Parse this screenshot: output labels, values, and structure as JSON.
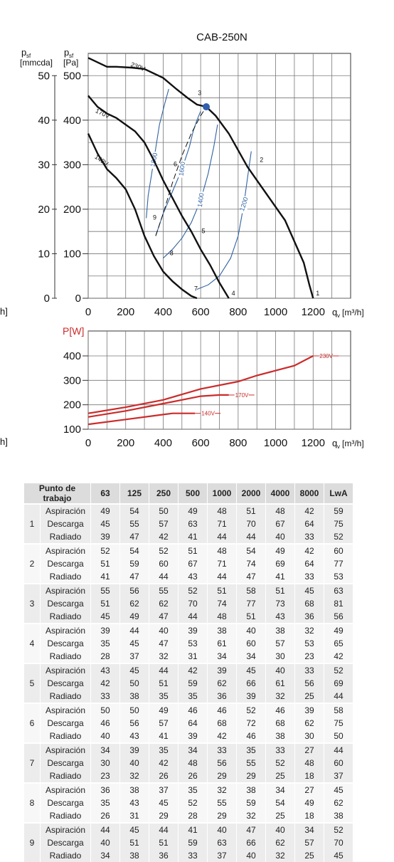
{
  "chart_data": [
    {
      "type": "line",
      "title": "CAB-250N",
      "y2_label_symbol": "p",
      "y2_label_sub": "sf",
      "y2_unit": "[mmcda]",
      "ylabel_symbol": "p",
      "ylabel_sub": "sf",
      "ylabel_unit": "[Pa]",
      "xlabel_symbol": "q",
      "xlabel_sub": "v",
      "xlabel_unit": "[m³/h]",
      "xlim": [
        0,
        1400
      ],
      "ylim": [
        0,
        550
      ],
      "x_ticks": [
        "0",
        "200",
        "400",
        "600",
        "800",
        "1000",
        "1200"
      ],
      "y_ticks": [
        "0",
        "100",
        "200",
        "300",
        "400",
        "500"
      ],
      "y2_ticks": [
        "0",
        "10",
        "20",
        "30",
        "40",
        "50"
      ],
      "grid": true,
      "series": [
        {
          "name": "230V",
          "color": "#111111",
          "x": [
            0,
            100,
            150,
            230,
            300,
            400,
            470,
            530,
            580,
            630,
            680,
            750,
            850,
            950,
            1050,
            1150,
            1180,
            1200
          ],
          "y": [
            540,
            520,
            520,
            518,
            515,
            495,
            470,
            450,
            435,
            430,
            410,
            370,
            295,
            235,
            175,
            80,
            30,
            0
          ]
        },
        {
          "name": "170V",
          "color": "#111111",
          "x": [
            0,
            50,
            100,
            150,
            200,
            250,
            300,
            350,
            400,
            450,
            500,
            550,
            600,
            650,
            700,
            750
          ],
          "y": [
            455,
            430,
            415,
            405,
            390,
            375,
            350,
            310,
            265,
            225,
            185,
            150,
            110,
            75,
            35,
            0
          ]
        },
        {
          "name": "140V",
          "color": "#111111",
          "x": [
            0,
            50,
            100,
            150,
            200,
            250,
            300,
            350,
            400,
            450,
            500,
            550,
            580
          ],
          "y": [
            370,
            325,
            290,
            270,
            245,
            200,
            140,
            95,
            60,
            38,
            20,
            5,
            0
          ]
        }
      ],
      "iso_rpm_curves": [
        {
          "label": "1800",
          "x": [
            310,
            320,
            350,
            380,
            410,
            430
          ],
          "y": [
            180,
            230,
            310,
            390,
            440,
            470
          ]
        },
        {
          "label": "1600",
          "x": [
            360,
            400,
            450,
            500,
            540,
            560,
            580,
            600
          ],
          "y": [
            140,
            190,
            240,
            290,
            340,
            375,
            400,
            420
          ]
        },
        {
          "label": "1400",
          "x": [
            400,
            450,
            500,
            550,
            600,
            640,
            670,
            690
          ],
          "y": [
            90,
            110,
            135,
            170,
            220,
            280,
            340,
            390
          ]
        },
        {
          "label": "1200",
          "x": [
            580,
            640,
            700,
            760,
            800,
            830,
            850,
            870
          ],
          "y": [
            20,
            30,
            50,
            90,
            140,
            210,
            270,
            330
          ]
        }
      ],
      "system_line": {
        "x": [
          360,
          400,
          450,
          500,
          550,
          600,
          630
        ],
        "y": [
          140,
          190,
          260,
          320,
          370,
          410,
          430
        ]
      },
      "duty_point": {
        "x": 630,
        "y": 430
      },
      "operating_points": [
        {
          "label": "1",
          "x": 1200,
          "y": 0
        },
        {
          "label": "2",
          "x": 900,
          "y": 300
        },
        {
          "label": "3",
          "x": 570,
          "y": 450
        },
        {
          "label": "4",
          "x": 750,
          "y": 0
        },
        {
          "label": "5",
          "x": 590,
          "y": 140
        },
        {
          "label": "6",
          "x": 440,
          "y": 290
        },
        {
          "label": "7",
          "x": 550,
          "y": 10
        },
        {
          "label": "8",
          "x": 420,
          "y": 90
        },
        {
          "label": "9",
          "x": 330,
          "y": 170
        }
      ]
    },
    {
      "type": "line",
      "ylabel": "P[W]",
      "xlabel_symbol": "q",
      "xlabel_sub": "v",
      "xlabel_unit": "[m³/h]",
      "xlim": [
        0,
        1400
      ],
      "ylim": [
        100,
        400
      ],
      "x_ticks": [
        "0",
        "200",
        "400",
        "600",
        "800",
        "1000",
        "1200"
      ],
      "y_ticks": [
        "100",
        "200",
        "300",
        "400"
      ],
      "grid": true,
      "series": [
        {
          "name": "230V",
          "color": "#cc2b2b",
          "x": [
            0,
            200,
            400,
            600,
            800,
            900,
            1000,
            1100,
            1200
          ],
          "y": [
            165,
            190,
            220,
            265,
            295,
            320,
            340,
            360,
            400
          ]
        },
        {
          "name": "170V",
          "color": "#cc2b2b",
          "x": [
            0,
            200,
            400,
            500,
            600,
            700,
            750
          ],
          "y": [
            150,
            175,
            205,
            220,
            235,
            240,
            240
          ]
        },
        {
          "name": "140V",
          "color": "#cc2b2b",
          "x": [
            0,
            200,
            400,
            450,
            500,
            550,
            570
          ],
          "y": [
            120,
            140,
            160,
            165,
            165,
            165,
            165
          ]
        }
      ]
    },
    {
      "type": "table",
      "columns": [
        "Punto de trabajo",
        "63",
        "125",
        "250",
        "500",
        "1000",
        "2000",
        "4000",
        "8000",
        "LwA"
      ],
      "groups": [
        {
          "point": "1",
          "rows": [
            {
              "label": "Aspiración",
              "values": [
                "49",
                "54",
                "50",
                "49",
                "48",
                "51",
                "48",
                "42",
                "59"
              ]
            },
            {
              "label": "Descarga",
              "values": [
                "45",
                "55",
                "57",
                "63",
                "71",
                "70",
                "67",
                "64",
                "75"
              ]
            },
            {
              "label": "Radiado",
              "values": [
                "39",
                "47",
                "42",
                "41",
                "44",
                "44",
                "40",
                "33",
                "52"
              ]
            }
          ]
        },
        {
          "point": "2",
          "rows": [
            {
              "label": "Aspiración",
              "values": [
                "52",
                "54",
                "52",
                "51",
                "48",
                "54",
                "49",
                "42",
                "60"
              ]
            },
            {
              "label": "Descarga",
              "values": [
                "51",
                "59",
                "60",
                "67",
                "71",
                "74",
                "69",
                "64",
                "77"
              ]
            },
            {
              "label": "Radiado",
              "values": [
                "41",
                "47",
                "44",
                "43",
                "44",
                "47",
                "41",
                "33",
                "53"
              ]
            }
          ]
        },
        {
          "point": "3",
          "rows": [
            {
              "label": "Aspiración",
              "values": [
                "55",
                "56",
                "55",
                "52",
                "51",
                "58",
                "51",
                "45",
                "63"
              ]
            },
            {
              "label": "Descarga",
              "values": [
                "51",
                "62",
                "62",
                "70",
                "74",
                "77",
                "73",
                "68",
                "81"
              ]
            },
            {
              "label": "Radiado",
              "values": [
                "45",
                "49",
                "47",
                "44",
                "48",
                "51",
                "43",
                "36",
                "56"
              ]
            }
          ]
        },
        {
          "point": "4",
          "rows": [
            {
              "label": "Aspiración",
              "values": [
                "39",
                "44",
                "40",
                "39",
                "38",
                "40",
                "38",
                "32",
                "49"
              ]
            },
            {
              "label": "Descarga",
              "values": [
                "35",
                "45",
                "47",
                "53",
                "61",
                "60",
                "57",
                "53",
                "65"
              ]
            },
            {
              "label": "Radiado",
              "values": [
                "28",
                "37",
                "32",
                "31",
                "34",
                "34",
                "30",
                "23",
                "42"
              ]
            }
          ]
        },
        {
          "point": "5",
          "rows": [
            {
              "label": "Aspiración",
              "values": [
                "43",
                "45",
                "44",
                "42",
                "39",
                "45",
                "40",
                "33",
                "52"
              ]
            },
            {
              "label": "Descarga",
              "values": [
                "42",
                "50",
                "51",
                "59",
                "62",
                "66",
                "61",
                "56",
                "69"
              ]
            },
            {
              "label": "Radiado",
              "values": [
                "33",
                "38",
                "35",
                "35",
                "36",
                "39",
                "32",
                "25",
                "44"
              ]
            }
          ]
        },
        {
          "point": "6",
          "rows": [
            {
              "label": "Aspiración",
              "values": [
                "50",
                "50",
                "49",
                "46",
                "46",
                "52",
                "46",
                "39",
                "58"
              ]
            },
            {
              "label": "Descarga",
              "values": [
                "46",
                "56",
                "57",
                "64",
                "68",
                "72",
                "68",
                "62",
                "75"
              ]
            },
            {
              "label": "Radiado",
              "values": [
                "40",
                "43",
                "41",
                "39",
                "42",
                "46",
                "38",
                "30",
                "50"
              ]
            }
          ]
        },
        {
          "point": "7",
          "rows": [
            {
              "label": "Aspiración",
              "values": [
                "34",
                "39",
                "35",
                "34",
                "33",
                "35",
                "33",
                "27",
                "44"
              ]
            },
            {
              "label": "Descarga",
              "values": [
                "30",
                "40",
                "42",
                "48",
                "56",
                "55",
                "52",
                "48",
                "60"
              ]
            },
            {
              "label": "Radiado",
              "values": [
                "23",
                "32",
                "26",
                "26",
                "29",
                "29",
                "25",
                "18",
                "37"
              ]
            }
          ]
        },
        {
          "point": "8",
          "rows": [
            {
              "label": "Aspiración",
              "values": [
                "36",
                "38",
                "37",
                "35",
                "32",
                "38",
                "34",
                "27",
                "45"
              ]
            },
            {
              "label": "Descarga",
              "values": [
                "35",
                "43",
                "45",
                "52",
                "55",
                "59",
                "54",
                "49",
                "62"
              ]
            },
            {
              "label": "Radiado",
              "values": [
                "26",
                "31",
                "29",
                "28",
                "29",
                "32",
                "25",
                "18",
                "38"
              ]
            }
          ]
        },
        {
          "point": "9",
          "rows": [
            {
              "label": "Aspiración",
              "values": [
                "44",
                "45",
                "44",
                "41",
                "40",
                "47",
                "40",
                "34",
                "52"
              ]
            },
            {
              "label": "Descarga",
              "values": [
                "40",
                "51",
                "51",
                "59",
                "63",
                "66",
                "62",
                "57",
                "70"
              ]
            },
            {
              "label": "Radiado",
              "values": [
                "34",
                "38",
                "36",
                "33",
                "37",
                "40",
                "32",
                "25",
                "45"
              ]
            }
          ]
        }
      ]
    }
  ],
  "edge_fragments": [
    "h]",
    "h]"
  ]
}
